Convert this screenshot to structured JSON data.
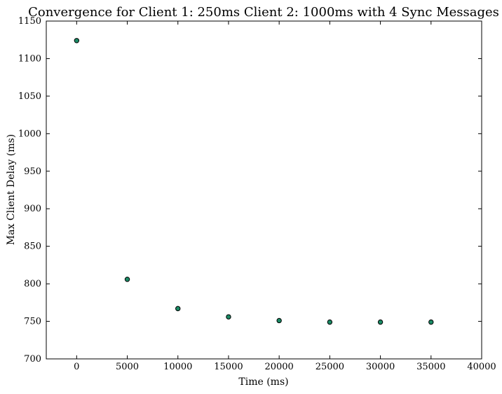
{
  "chart_data": {
    "type": "scatter",
    "title": "Convergence for Client 1: 250ms Client 2: 1000ms with 4 Sync Messages",
    "xlabel": "Time (ms)",
    "ylabel": "Max Client Delay (ms)",
    "xlim": [
      -3000,
      40000
    ],
    "ylim": [
      700,
      1150
    ],
    "xticks": [
      0,
      5000,
      10000,
      15000,
      20000,
      25000,
      30000,
      35000,
      40000
    ],
    "yticks": [
      700,
      750,
      800,
      850,
      900,
      950,
      1000,
      1050,
      1100,
      1150
    ],
    "grid": false,
    "series": [
      {
        "color": "#1b8a65",
        "points": [
          {
            "x": 0,
            "y": 1124
          },
          {
            "x": 5000,
            "y": 806
          },
          {
            "x": 10000,
            "y": 767
          },
          {
            "x": 15000,
            "y": 756
          },
          {
            "x": 20000,
            "y": 751
          },
          {
            "x": 25000,
            "y": 749
          },
          {
            "x": 30000,
            "y": 749
          },
          {
            "x": 35000,
            "y": 749
          }
        ]
      }
    ]
  }
}
